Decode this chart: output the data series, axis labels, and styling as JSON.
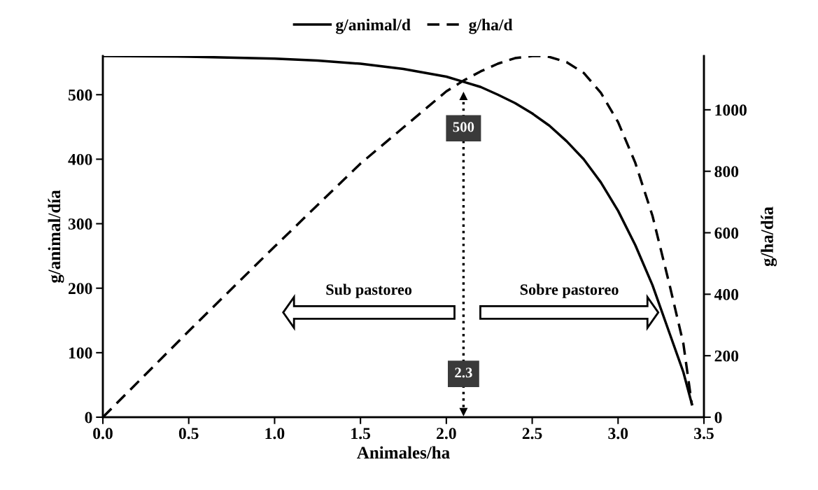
{
  "chart_data": {
    "type": "line",
    "xlabel": "Animales/ha",
    "ylabel": "g/animal/día",
    "y2label": "g/ha/día",
    "series": [
      {
        "name": "g/animal/d",
        "color": "#000000",
        "line_style": "solid",
        "x": [
          0,
          0.5,
          1.0,
          1.25,
          1.5,
          1.75,
          2.0,
          2.1,
          2.2,
          2.3,
          2.4,
          2.5,
          2.6,
          2.7,
          2.8,
          2.9,
          3.0,
          3.1,
          3.2,
          3.3,
          3.38,
          3.43
        ],
        "values": [
          560,
          559,
          556,
          553,
          548,
          540,
          528,
          520,
          512,
          500,
          487,
          471,
          452,
          428,
          400,
          364,
          320,
          267,
          205,
          130,
          70,
          20
        ]
      },
      {
        "name": "g/ha/d",
        "color": "#000000",
        "line_style": "dashed",
        "axis": "y2",
        "x": [
          0,
          0.5,
          1.0,
          1.5,
          2.0,
          2.1,
          2.2,
          2.3,
          2.4,
          2.5,
          2.55,
          2.6,
          2.7,
          2.8,
          2.9,
          3.0,
          3.1,
          3.2,
          3.3,
          3.38,
          3.43
        ],
        "values": [
          0,
          280,
          555,
          825,
          1060,
          1095,
          1125,
          1150,
          1168,
          1175,
          1175,
          1172,
          1155,
          1120,
          1055,
          960,
          828,
          656,
          430,
          240,
          40
        ]
      }
    ],
    "xlim": [
      0,
      3.5
    ],
    "xticks": [
      {
        "value": 0,
        "label": "0.0"
      },
      0.5,
      {
        "value": 1,
        "label": "1.0"
      },
      1.5,
      {
        "value": 2,
        "label": "2.0"
      },
      2.5,
      {
        "value": 3,
        "label": "3.0"
      },
      3.5
    ],
    "ylim": [
      0,
      560
    ],
    "yticks": [
      0,
      100,
      200,
      300,
      400,
      500
    ],
    "y2lim": [
      0,
      1175
    ],
    "y2ticks": [
      0,
      200,
      400,
      600,
      800,
      1000
    ],
    "ref_lines": [
      {
        "axis": "x",
        "value": 2.1,
        "line_style": "dotted",
        "color": "#000000"
      }
    ],
    "annotations": [
      "500",
      "2.3",
      "Sub pastoreo",
      "Sobre pastoreo"
    ],
    "legend": "top",
    "grid": false
  }
}
